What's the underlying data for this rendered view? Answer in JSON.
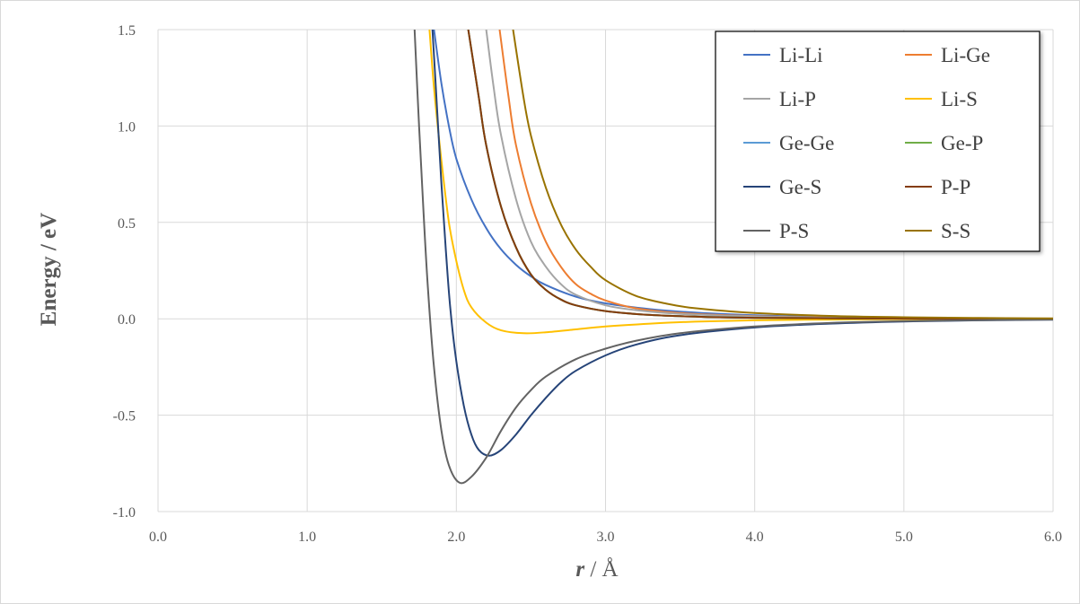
{
  "chart_data": {
    "type": "line",
    "title": "",
    "xlabel_italic": "r",
    "xlabel_rest": "/ Å",
    "ylabel": "Energy / eV",
    "xlim": [
      0,
      6
    ],
    "ylim": [
      -1,
      1.5
    ],
    "x_ticks": [
      "0.0",
      "1.0",
      "2.0",
      "3.0",
      "4.0",
      "5.0",
      "6.0"
    ],
    "y_ticks": [
      "-1.0",
      "-0.5",
      "0.0",
      "0.5",
      "1.0",
      "1.5"
    ],
    "grid": true,
    "legend_position": "top-right",
    "series": [
      {
        "name": "Li-Li",
        "color": "#4472C4",
        "points": [
          [
            1.85,
            1.5
          ],
          [
            1.9,
            1.22
          ],
          [
            1.95,
            1.0
          ],
          [
            2.0,
            0.83
          ],
          [
            2.1,
            0.62
          ],
          [
            2.2,
            0.47
          ],
          [
            2.3,
            0.36
          ],
          [
            2.4,
            0.28
          ],
          [
            2.5,
            0.22
          ],
          [
            2.6,
            0.175
          ],
          [
            2.8,
            0.115
          ],
          [
            3.0,
            0.08
          ],
          [
            3.3,
            0.05
          ],
          [
            3.6,
            0.032
          ],
          [
            4.0,
            0.018
          ],
          [
            4.5,
            0.009
          ],
          [
            5.0,
            0.005
          ],
          [
            5.5,
            0.002
          ],
          [
            6.0,
            0.0
          ]
        ]
      },
      {
        "name": "Li-Ge",
        "color": "#ED7D31",
        "points": [
          [
            2.29,
            1.5
          ],
          [
            2.35,
            1.15
          ],
          [
            2.4,
            0.9
          ],
          [
            2.5,
            0.6
          ],
          [
            2.6,
            0.4
          ],
          [
            2.7,
            0.27
          ],
          [
            2.8,
            0.18
          ],
          [
            2.9,
            0.13
          ],
          [
            3.0,
            0.095
          ],
          [
            3.2,
            0.055
          ],
          [
            3.5,
            0.03
          ],
          [
            4.0,
            0.014
          ],
          [
            4.5,
            0.007
          ],
          [
            5.0,
            0.004
          ],
          [
            6.0,
            0.0
          ]
        ]
      },
      {
        "name": "Li-P",
        "color": "#A5A5A5",
        "points": [
          [
            2.2,
            1.5
          ],
          [
            2.25,
            1.2
          ],
          [
            2.3,
            0.95
          ],
          [
            2.4,
            0.62
          ],
          [
            2.5,
            0.4
          ],
          [
            2.6,
            0.27
          ],
          [
            2.7,
            0.18
          ],
          [
            2.8,
            0.125
          ],
          [
            3.0,
            0.07
          ],
          [
            3.2,
            0.045
          ],
          [
            3.5,
            0.025
          ],
          [
            4.0,
            0.012
          ],
          [
            4.5,
            0.006
          ],
          [
            5.0,
            0.003
          ],
          [
            6.0,
            0.0
          ]
        ]
      },
      {
        "name": "Li-S",
        "color": "#FFC000",
        "points": [
          [
            1.82,
            1.5
          ],
          [
            1.85,
            1.2
          ],
          [
            1.9,
            0.82
          ],
          [
            1.95,
            0.5
          ],
          [
            2.0,
            0.3
          ],
          [
            2.05,
            0.15
          ],
          [
            2.1,
            0.06
          ],
          [
            2.2,
            -0.02
          ],
          [
            2.3,
            -0.06
          ],
          [
            2.45,
            -0.075
          ],
          [
            2.6,
            -0.07
          ],
          [
            2.8,
            -0.055
          ],
          [
            3.0,
            -0.04
          ],
          [
            3.3,
            -0.025
          ],
          [
            3.6,
            -0.015
          ],
          [
            4.0,
            -0.008
          ],
          [
            4.5,
            -0.004
          ],
          [
            5.0,
            -0.002
          ],
          [
            6.0,
            0.0
          ]
        ]
      },
      {
        "name": "Ge-Ge",
        "color": "#5B9BD5",
        "points": [
          [
            2.08,
            1.5
          ],
          [
            2.15,
            1.15
          ],
          [
            2.2,
            0.9
          ],
          [
            2.3,
            0.58
          ],
          [
            2.4,
            0.37
          ],
          [
            2.5,
            0.23
          ],
          [
            2.6,
            0.15
          ],
          [
            2.7,
            0.1
          ],
          [
            2.8,
            0.07
          ],
          [
            3.0,
            0.04
          ],
          [
            3.3,
            0.02
          ],
          [
            3.6,
            0.011
          ],
          [
            4.0,
            0.005
          ],
          [
            5.0,
            0.001
          ],
          [
            6.0,
            0.0
          ]
        ]
      },
      {
        "name": "Ge-P",
        "color": "#70AD47",
        "points": [
          [
            2.08,
            1.5
          ],
          [
            2.15,
            1.15
          ],
          [
            2.2,
            0.9
          ],
          [
            2.3,
            0.58
          ],
          [
            2.4,
            0.37
          ],
          [
            2.5,
            0.23
          ],
          [
            2.6,
            0.15
          ],
          [
            2.7,
            0.1
          ],
          [
            2.8,
            0.07
          ],
          [
            3.0,
            0.04
          ],
          [
            3.3,
            0.02
          ],
          [
            3.6,
            0.011
          ],
          [
            4.0,
            0.005
          ],
          [
            5.0,
            0.001
          ],
          [
            6.0,
            0.0
          ]
        ]
      },
      {
        "name": "Ge-S",
        "color": "#264478",
        "points": [
          [
            1.84,
            1.5
          ],
          [
            1.87,
            1.1
          ],
          [
            1.9,
            0.7
          ],
          [
            1.93,
            0.35
          ],
          [
            1.96,
            0.05
          ],
          [
            2.0,
            -0.22
          ],
          [
            2.05,
            -0.45
          ],
          [
            2.1,
            -0.6
          ],
          [
            2.15,
            -0.68
          ],
          [
            2.22,
            -0.71
          ],
          [
            2.3,
            -0.68
          ],
          [
            2.4,
            -0.6
          ],
          [
            2.5,
            -0.5
          ],
          [
            2.6,
            -0.41
          ],
          [
            2.7,
            -0.33
          ],
          [
            2.8,
            -0.27
          ],
          [
            3.0,
            -0.19
          ],
          [
            3.2,
            -0.135
          ],
          [
            3.5,
            -0.085
          ],
          [
            4.0,
            -0.045
          ],
          [
            4.5,
            -0.025
          ],
          [
            5.0,
            -0.014
          ],
          [
            5.5,
            -0.008
          ],
          [
            6.0,
            -0.004
          ]
        ]
      },
      {
        "name": "P-P",
        "color": "#843C0C",
        "points": [
          [
            2.08,
            1.5
          ],
          [
            2.15,
            1.15
          ],
          [
            2.2,
            0.9
          ],
          [
            2.3,
            0.58
          ],
          [
            2.4,
            0.37
          ],
          [
            2.5,
            0.23
          ],
          [
            2.6,
            0.15
          ],
          [
            2.7,
            0.1
          ],
          [
            2.8,
            0.07
          ],
          [
            3.0,
            0.04
          ],
          [
            3.3,
            0.02
          ],
          [
            3.6,
            0.011
          ],
          [
            4.0,
            0.005
          ],
          [
            5.0,
            0.001
          ],
          [
            6.0,
            0.0
          ]
        ]
      },
      {
        "name": "P-S",
        "color": "#636363",
        "points": [
          [
            1.72,
            1.5
          ],
          [
            1.75,
            1.0
          ],
          [
            1.78,
            0.55
          ],
          [
            1.81,
            0.15
          ],
          [
            1.85,
            -0.25
          ],
          [
            1.9,
            -0.58
          ],
          [
            1.95,
            -0.76
          ],
          [
            2.02,
            -0.85
          ],
          [
            2.1,
            -0.82
          ],
          [
            2.2,
            -0.72
          ],
          [
            2.3,
            -0.58
          ],
          [
            2.4,
            -0.46
          ],
          [
            2.5,
            -0.37
          ],
          [
            2.6,
            -0.3
          ],
          [
            2.8,
            -0.21
          ],
          [
            3.0,
            -0.155
          ],
          [
            3.2,
            -0.115
          ],
          [
            3.5,
            -0.075
          ],
          [
            4.0,
            -0.04
          ],
          [
            4.5,
            -0.022
          ],
          [
            5.0,
            -0.012
          ],
          [
            5.5,
            -0.007
          ],
          [
            6.0,
            -0.004
          ]
        ]
      },
      {
        "name": "S-S",
        "color": "#997300",
        "points": [
          [
            2.38,
            1.5
          ],
          [
            2.45,
            1.15
          ],
          [
            2.5,
            0.95
          ],
          [
            2.6,
            0.68
          ],
          [
            2.7,
            0.49
          ],
          [
            2.8,
            0.36
          ],
          [
            2.9,
            0.27
          ],
          [
            3.0,
            0.2
          ],
          [
            3.2,
            0.12
          ],
          [
            3.4,
            0.08
          ],
          [
            3.6,
            0.055
          ],
          [
            4.0,
            0.03
          ],
          [
            4.5,
            0.015
          ],
          [
            5.0,
            0.008
          ],
          [
            5.5,
            0.004
          ],
          [
            6.0,
            0.002
          ]
        ]
      }
    ]
  }
}
